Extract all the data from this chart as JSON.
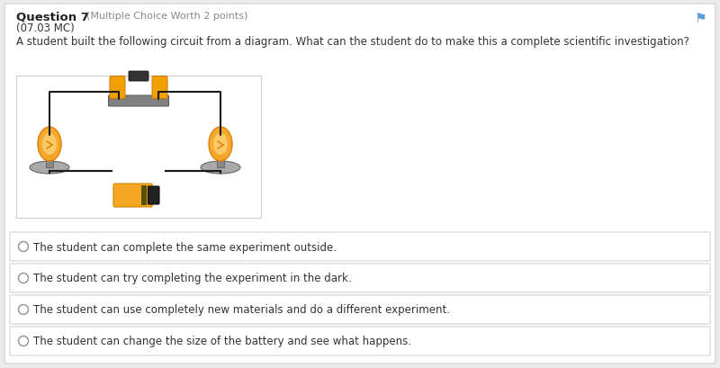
{
  "background_color": "#ebebeb",
  "card_color": "#ffffff",
  "question_number": "Question 7",
  "question_meta": "(Multiple Choice Worth 2 points)",
  "question_sub": "(07.03 MC)",
  "question_text": "A student built the following circuit from a diagram. What can the student do to make this a complete scientific investigation?",
  "choices": [
    "The student can complete the same experiment outside.",
    "The student can try completing the experiment in the dark.",
    "The student can use completely new materials and do a different experiment.",
    "The student can change the size of the battery and see what happens."
  ],
  "choice_bg": "#ffffff",
  "choice_border": "#cccccc",
  "text_color": "#333333",
  "meta_color": "#888888",
  "flag_color": "#5b9bd5",
  "circuit_bg": "#ffffff",
  "circuit_border": "#cccccc",
  "wire_color": "#1a1a1a",
  "battery_yellow": "#f5a623",
  "battery_dark": "#222222",
  "lamp_yellow": "#f5a623",
  "lamp_orange": "#e07b00",
  "lamp_base_gray": "#888888",
  "lamp_plate_gray": "#aaaaaa",
  "switch_yellow": "#f0a000",
  "switch_gray": "#808080",
  "switch_dark": "#333333"
}
